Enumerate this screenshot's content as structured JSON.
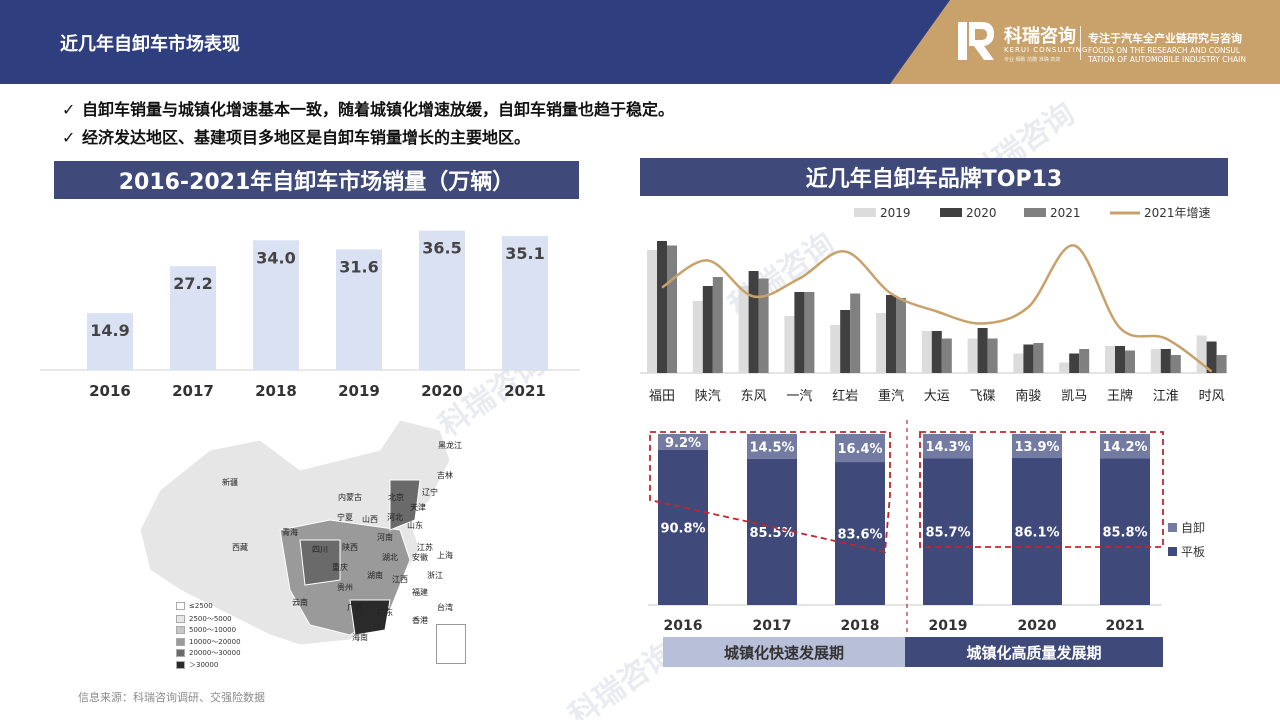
{
  "header": {
    "title": "近几年自卸车市场表现",
    "logo_name": "科瑞咨询",
    "logo_en": "KERUI CONSULTING",
    "logo_tiny": "专业 细致 前瞻 准确 高效",
    "slogan": "专注于汽车全产业链研究与咨询",
    "slogan_en_1": "FOCUS ON THE RESEARCH AND CONSUL",
    "slogan_en_2": "TATION OF AUTOMOBILE INDUSTRY CHAIN"
  },
  "bullets": [
    "自卸车销量与城镇化增速基本一致，随着城镇化增速放缓，自卸车销量也趋于稳定。",
    "经济发达地区、基建项目多地区是自卸车销量增长的主要地区。"
  ],
  "check_mark": "✓",
  "left_section": {
    "title": "2016-2021年自卸车市场销量（万辆）"
  },
  "right_section": {
    "title": "近几年自卸车品牌TOP13"
  },
  "chart_data": [
    {
      "type": "bar",
      "title": "2016-2021年自卸车市场销量（万辆）",
      "categories": [
        "2016",
        "2017",
        "2018",
        "2019",
        "2020",
        "2021"
      ],
      "values": [
        14.9,
        27.2,
        34.0,
        31.6,
        36.5,
        35.1
      ],
      "value_labels": [
        "14.9",
        "27.2",
        "34.0",
        "31.6",
        "36.5",
        "35.1"
      ],
      "ylim": [
        0,
        38
      ],
      "color": "#d9e1f2",
      "grid": false
    },
    {
      "type": "bar",
      "title": "近几年自卸车品牌TOP13",
      "categories": [
        "福田",
        "陕汽",
        "东风",
        "一汽",
        "红岩",
        "重汽",
        "大运",
        "飞碟",
        "南骏",
        "凯马",
        "王牌",
        "江淮",
        "时风"
      ],
      "series": [
        {
          "name": "2019",
          "values": [
            82,
            48,
            58,
            38,
            32,
            40,
            28,
            23,
            13,
            7,
            18,
            16,
            25
          ],
          "color": "#dcdcdc"
        },
        {
          "name": "2020",
          "values": [
            88,
            58,
            68,
            54,
            42,
            52,
            28,
            30,
            19,
            13,
            18,
            16,
            21
          ],
          "color": "#404040"
        },
        {
          "name": "2021",
          "values": [
            85,
            64,
            63,
            54,
            53,
            50,
            23,
            23,
            20,
            16,
            15,
            12,
            12
          ],
          "color": "#808080"
        }
      ],
      "line_series": {
        "name": "2021年增速",
        "values": [
          57,
          75,
          51,
          63,
          81,
          53,
          41,
          33,
          44,
          85,
          30,
          23,
          1
        ],
        "color": "#c8a26a"
      },
      "ylim": [
        0,
        100
      ],
      "legend": "top",
      "grid": false
    },
    {
      "type": "bar",
      "stacked": true,
      "categories": [
        "2016",
        "2017",
        "2018",
        "2019",
        "2020",
        "2021"
      ],
      "series": [
        {
          "name": "平板",
          "values": [
            90.8,
            85.5,
            83.6,
            85.7,
            86.1,
            85.8
          ],
          "labels": [
            "90.8%",
            "85.5%",
            "83.6%",
            "85.7%",
            "86.1%",
            "85.8%"
          ],
          "color": "#3f4a7a"
        },
        {
          "name": "自卸",
          "values": [
            9.2,
            14.5,
            16.4,
            14.3,
            13.9,
            14.2
          ],
          "labels": [
            "9.2%",
            "14.5%",
            "16.4%",
            "14.3%",
            "13.9%",
            "14.2%"
          ],
          "color": "#747ba3"
        }
      ],
      "ylim": [
        0,
        100
      ],
      "legend": "right",
      "periods": [
        "城镇化快速发展期",
        "城镇化高质量发展期"
      ]
    }
  ],
  "map": {
    "provinces": [
      "新疆",
      "西藏",
      "青海",
      "内蒙古",
      "黑龙江",
      "吉林",
      "辽宁",
      "北京",
      "天津",
      "河北",
      "山西",
      "宁夏",
      "陕西",
      "河南",
      "山东",
      "江苏",
      "上海",
      "安徽",
      "湖北",
      "四川",
      "重庆",
      "湖南",
      "江西",
      "浙江",
      "云南",
      "贵州",
      "广西",
      "福建",
      "台湾",
      "广东",
      "香港",
      "海南"
    ],
    "legend": [
      "≤2500",
      "2500～5000",
      "5000～10000",
      "10000～20000",
      "20000～30000",
      "＞30000"
    ],
    "legend_colors": [
      "#ffffff",
      "#e6e6e6",
      "#c8c8c8",
      "#9a9a9a",
      "#6a6a6a",
      "#2a2a2a"
    ]
  },
  "source": "信息来源：科瑞咨询调研、交强险数据"
}
